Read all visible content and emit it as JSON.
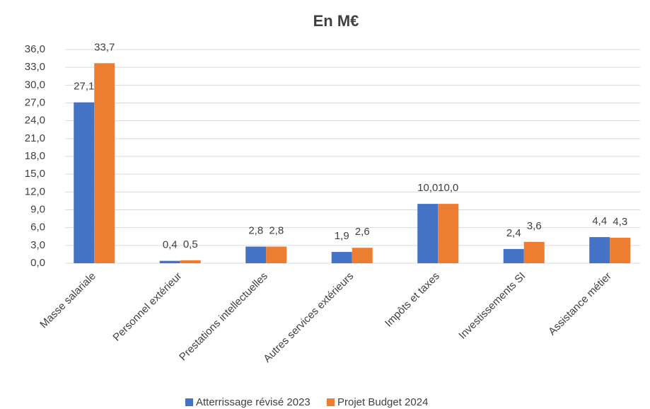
{
  "chart_data": {
    "type": "bar",
    "title": "En M€",
    "categories": [
      "Masse salariale",
      "Personnel extérieur",
      "Prestations intellectuelles",
      "Autres services extérieurs",
      "Impôts et taxes",
      "Investissements SI",
      "Assistance métier"
    ],
    "series": [
      {
        "name": "Atterrissage révisé 2023",
        "color": "#4472c4",
        "values": [
          27.1,
          0.4,
          2.8,
          1.9,
          10.0,
          2.4,
          4.4
        ],
        "value_labels": [
          "27,1",
          "0,4",
          "2,8",
          "1,9",
          "10,0",
          "2,4",
          "4,4"
        ]
      },
      {
        "name": "Projet Budget 2024",
        "color": "#ed7d31",
        "values": [
          33.7,
          0.5,
          2.8,
          2.6,
          10.0,
          3.6,
          4.3
        ],
        "value_labels": [
          "33,7",
          "0,5",
          "2,8",
          "2,6",
          "10,0",
          "3,6",
          "4,3"
        ]
      }
    ],
    "ylim": [
      0,
      36
    ],
    "yticks": [
      {
        "value": 0,
        "label": "0,0"
      },
      {
        "value": 3,
        "label": "3,0"
      },
      {
        "value": 6,
        "label": "6,0"
      },
      {
        "value": 9,
        "label": "9,0"
      },
      {
        "value": 12,
        "label": "12,0"
      },
      {
        "value": 15,
        "label": "15,0"
      },
      {
        "value": 18,
        "label": "18,0"
      },
      {
        "value": 21,
        "label": "21,0"
      },
      {
        "value": 24,
        "label": "24,0"
      },
      {
        "value": 27,
        "label": "27,0"
      },
      {
        "value": 30,
        "label": "30,0"
      },
      {
        "value": 33,
        "label": "33,0"
      },
      {
        "value": 36,
        "label": "36,0"
      }
    ],
    "grid": true,
    "legend": "bottom"
  }
}
